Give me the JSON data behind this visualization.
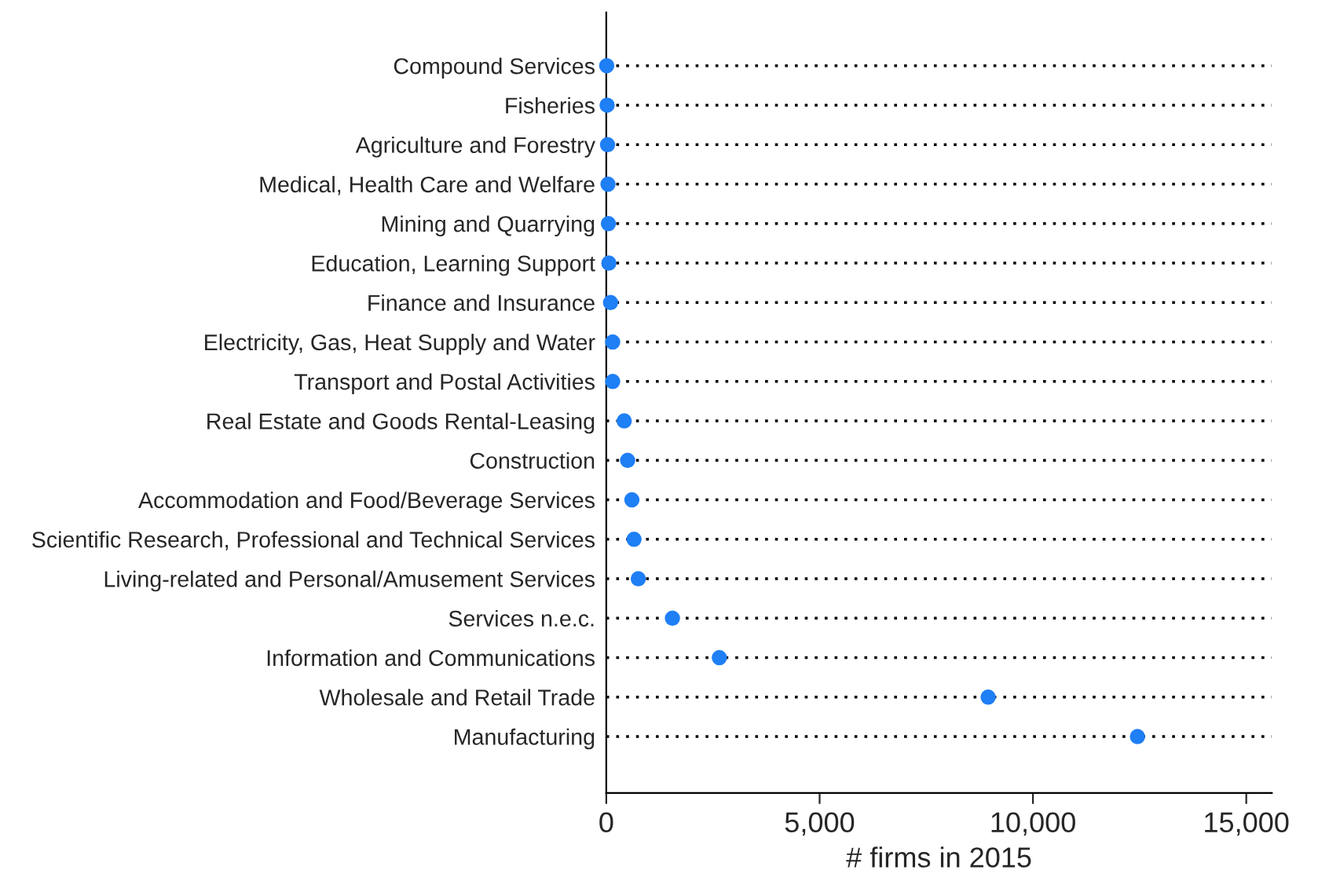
{
  "chart_data": {
    "type": "scatter",
    "orientation": "horizontal",
    "xlabel": "# firms in 2015",
    "categories": [
      "Compound Services",
      "Fisheries",
      "Agriculture and Forestry",
      "Medical, Health Care and Welfare",
      "Mining and Quarrying",
      "Education, Learning Support",
      "Finance and Insurance",
      "Electricity, Gas, Heat Supply and Water",
      "Transport and Postal Activities",
      "Real Estate and Goods Rental-Leasing",
      "Construction",
      "Accommodation and Food/Beverage Services",
      "Scientific Research, Professional and Technical Services",
      "Living-related and Personal/Amusement Services",
      "Services n.e.c.",
      "Information and Communications",
      "Wholesale and Retail Trade",
      "Manufacturing"
    ],
    "series": [
      {
        "color": "#1f7ff5",
        "values": [
          10,
          20,
          30,
          40,
          50,
          60,
          100,
          150,
          150,
          420,
          500,
          600,
          650,
          750,
          1550,
          2650,
          8950,
          12450
        ]
      }
    ],
    "xlim": [
      0,
      15600
    ],
    "xticks": [
      {
        "value": 0,
        "label": "0"
      },
      {
        "value": 5000,
        "label": "5,000"
      },
      {
        "value": 10000,
        "label": "10,000"
      },
      {
        "value": 15000,
        "label": "15,000"
      }
    ],
    "grid": "y",
    "marker": "circle"
  }
}
